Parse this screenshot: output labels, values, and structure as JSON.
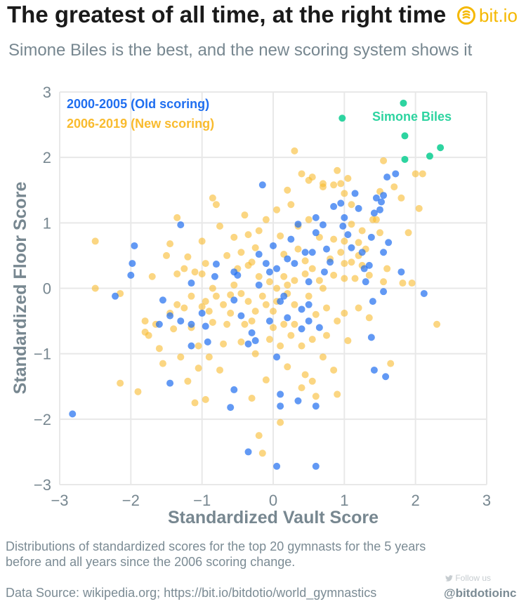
{
  "header": {
    "title": "The greatest of all time, at the right time",
    "subtitle": "Simone Biles is the best, and the new scoring system shows it",
    "logo_text": "bit.io"
  },
  "footer": {
    "caption": "Distributions of standardized scores for the top 20 gymnasts for the 5 years before and all years since the 2006 scoring change.",
    "source": "Data Source: wikipedia.org; https://bit.io/bitdotio/world_gymnastics",
    "follow": "Follow us",
    "handle": "@bitdotioinc"
  },
  "colors": {
    "old": "#1f6ef0",
    "new": "#f9bb2e",
    "biles": "#2dd4a0",
    "brand": "#f5b800"
  },
  "chart_data": {
    "type": "scatter",
    "xlabel": "Standardized Vault Score",
    "ylabel": "Standardized Floor Score",
    "xlim": [
      -3,
      3
    ],
    "ylim": [
      -3,
      3
    ],
    "xticks": [
      "−3",
      "−2",
      "−1",
      "0",
      "1",
      "2",
      "3"
    ],
    "yticks": [
      "3",
      "2",
      "1",
      "0",
      "−1",
      "−2",
      "−3"
    ],
    "grid": true,
    "legend_position": "top-left",
    "annotation": "Simone Biles",
    "series": [
      {
        "name": "2000-2005 (Old scoring)",
        "color": "#1f6ef0",
        "points": [
          [
            -2.82,
            -1.92
          ],
          [
            -2.22,
            -0.12
          ],
          [
            -1.95,
            0.65
          ],
          [
            -1.98,
            0.38
          ],
          [
            -2.0,
            0.2
          ],
          [
            -1.6,
            -0.55
          ],
          [
            -1.55,
            -0.18
          ],
          [
            -1.45,
            -0.42
          ],
          [
            -1.3,
            0.97
          ],
          [
            -1.3,
            -0.5
          ],
          [
            -1.15,
            -0.55
          ],
          [
            -1.15,
            -0.88
          ],
          [
            -1.15,
            0.08
          ],
          [
            -1.0,
            -0.38
          ],
          [
            -0.95,
            -0.58
          ],
          [
            -0.92,
            -0.82
          ],
          [
            -0.82,
            0.18
          ],
          [
            -0.8,
            0.37
          ],
          [
            -0.55,
            -0.18
          ],
          [
            -0.5,
            0.2
          ],
          [
            -0.55,
            0.25
          ],
          [
            -0.45,
            -0.42
          ],
          [
            -0.35,
            -0.85
          ],
          [
            -0.25,
            -0.8
          ],
          [
            -0.2,
            0.05
          ],
          [
            -0.2,
            0.52
          ],
          [
            -0.1,
            0.38
          ],
          [
            -0.05,
            0.25
          ],
          [
            -0.05,
            -0.5
          ],
          [
            -0.15,
            1.58
          ],
          [
            -0.3,
            -0.68
          ],
          [
            0.0,
            0.65
          ],
          [
            0.05,
            0.3
          ],
          [
            0.1,
            -0.2
          ],
          [
            0.05,
            -1.05
          ],
          [
            0.1,
            -1.62
          ],
          [
            0.1,
            -1.8
          ],
          [
            0.15,
            -0.12
          ],
          [
            0.2,
            0.45
          ],
          [
            0.3,
            0.38
          ],
          [
            0.35,
            0.98
          ],
          [
            0.4,
            -0.32
          ],
          [
            0.45,
            0.55
          ],
          [
            0.4,
            -0.62
          ],
          [
            0.5,
            -0.25
          ],
          [
            0.55,
            0.55
          ],
          [
            0.6,
            0.85
          ],
          [
            0.65,
            -0.6
          ],
          [
            0.6,
            1.08
          ],
          [
            0.7,
            0.97
          ],
          [
            0.75,
            0.6
          ],
          [
            0.8,
            0.4
          ],
          [
            0.85,
            1.25
          ],
          [
            0.95,
            1.3
          ],
          [
            0.98,
            0.95
          ],
          [
            1.0,
            1.08
          ],
          [
            1.05,
            0.82
          ],
          [
            1.1,
            0.62
          ],
          [
            1.15,
            1.45
          ],
          [
            1.2,
            1.22
          ],
          [
            1.25,
            0.55
          ],
          [
            1.28,
            0.3
          ],
          [
            1.3,
            0.1
          ],
          [
            1.35,
            0.35
          ],
          [
            1.38,
            0.78
          ],
          [
            1.42,
            1.15
          ],
          [
            1.45,
            1.38
          ],
          [
            1.5,
            1.2
          ],
          [
            1.52,
            1.32
          ],
          [
            1.55,
            1.42
          ],
          [
            1.55,
            0.55
          ],
          [
            1.6,
            1.7
          ],
          [
            1.62,
            0.7
          ],
          [
            1.4,
            -0.2
          ],
          [
            1.55,
            -0.05
          ],
          [
            1.38,
            -0.75
          ],
          [
            1.42,
            -1.25
          ],
          [
            1.58,
            -1.35
          ],
          [
            1.72,
            1.75
          ],
          [
            1.8,
            0.25
          ],
          [
            2.12,
            -0.08
          ],
          [
            0.35,
            -1.72
          ],
          [
            0.6,
            -1.8
          ],
          [
            0.05,
            -2.72
          ],
          [
            0.6,
            -2.72
          ],
          [
            -0.35,
            -2.5
          ],
          [
            -0.6,
            -1.82
          ],
          [
            -1.45,
            -1.45
          ],
          [
            -0.55,
            -1.55
          ],
          [
            0.5,
            -0.5
          ],
          [
            0.2,
            -0.45
          ],
          [
            0.5,
            0.1
          ],
          [
            0.72,
            0.25
          ],
          [
            0.25,
            0.75
          ]
        ]
      },
      {
        "name": "2006-2019 (New scoring)",
        "color": "#f9bb2e",
        "points": [
          [
            -2.5,
            0.72
          ],
          [
            -2.5,
            0.0
          ],
          [
            -2.15,
            -1.45
          ],
          [
            -2.15,
            -0.08
          ],
          [
            -1.9,
            -1.58
          ],
          [
            -1.8,
            -0.5
          ],
          [
            -1.8,
            -0.67
          ],
          [
            -1.75,
            -0.72
          ],
          [
            -1.7,
            0.18
          ],
          [
            -1.65,
            -0.55
          ],
          [
            -1.6,
            -0.92
          ],
          [
            -1.55,
            -1.15
          ],
          [
            -1.5,
            0.5
          ],
          [
            -1.45,
            0.68
          ],
          [
            -1.45,
            -0.38
          ],
          [
            -1.4,
            -0.62
          ],
          [
            -1.35,
            0.22
          ],
          [
            -1.35,
            1.08
          ],
          [
            -1.3,
            -1.05
          ],
          [
            -1.25,
            -0.3
          ],
          [
            -1.25,
            0.3
          ],
          [
            -1.2,
            -1.42
          ],
          [
            -1.15,
            -0.12
          ],
          [
            -1.15,
            -0.6
          ],
          [
            -1.1,
            0.25
          ],
          [
            -1.1,
            -1.75
          ],
          [
            -1.05,
            -0.88
          ],
          [
            -1.05,
            -1.22
          ],
          [
            -1.0,
            -0.28
          ],
          [
            -1.0,
            0.72
          ],
          [
            -0.95,
            0.38
          ],
          [
            -0.95,
            -1.7
          ],
          [
            -0.9,
            -0.35
          ],
          [
            -0.9,
            -1.05
          ],
          [
            -0.85,
            0.0
          ],
          [
            -0.85,
            -0.52
          ],
          [
            -0.8,
            -0.12
          ],
          [
            -0.75,
            -1.25
          ],
          [
            -0.7,
            -0.25
          ],
          [
            -0.65,
            -0.55
          ],
          [
            -0.6,
            -0.1
          ],
          [
            -0.55,
            0.05
          ],
          [
            -0.5,
            0.3
          ],
          [
            -0.45,
            0.55
          ],
          [
            -0.45,
            -0.08
          ],
          [
            -0.4,
            -0.55
          ],
          [
            -0.35,
            0.82
          ],
          [
            -0.35,
            -0.2
          ],
          [
            -0.3,
            0.4
          ],
          [
            -0.25,
            0.62
          ],
          [
            -0.25,
            -0.35
          ],
          [
            -0.2,
            0.18
          ],
          [
            -0.15,
            -0.12
          ],
          [
            -0.1,
            -0.25
          ],
          [
            -0.05,
            0.1
          ],
          [
            0.0,
            -0.35
          ],
          [
            0.0,
            -0.6
          ],
          [
            0.05,
            0.0
          ],
          [
            0.1,
            -0.88
          ],
          [
            0.1,
            0.8
          ],
          [
            0.15,
            0.52
          ],
          [
            0.2,
            -0.08
          ],
          [
            0.25,
            1.28
          ],
          [
            0.3,
            0.12
          ],
          [
            0.3,
            -0.55
          ],
          [
            0.35,
            0.6
          ],
          [
            0.4,
            -0.88
          ],
          [
            0.45,
            0.22
          ],
          [
            0.45,
            -1.32
          ],
          [
            0.5,
            1.05
          ],
          [
            0.5,
            -0.12
          ],
          [
            0.55,
            0.3
          ],
          [
            0.55,
            -1.42
          ],
          [
            0.6,
            -0.4
          ],
          [
            0.65,
            0.78
          ],
          [
            0.7,
            0.0
          ],
          [
            0.75,
            -0.72
          ],
          [
            0.8,
            0.45
          ],
          [
            0.85,
            -1.25
          ],
          [
            0.85,
            0.2
          ],
          [
            0.9,
            -0.5
          ],
          [
            0.95,
            0.55
          ],
          [
            1.0,
            0.38
          ],
          [
            1.0,
            -0.38
          ],
          [
            1.05,
            -0.8
          ],
          [
            1.1,
            0.98
          ],
          [
            1.1,
            1.28
          ],
          [
            1.15,
            0.15
          ],
          [
            1.2,
            0.5
          ],
          [
            1.2,
            -0.3
          ],
          [
            1.25,
            0.88
          ],
          [
            1.3,
            0.6
          ],
          [
            1.35,
            -0.45
          ],
          [
            1.4,
            1.05
          ],
          [
            1.45,
            1.05
          ],
          [
            1.5,
            1.48
          ],
          [
            1.5,
            0.85
          ],
          [
            1.55,
            1.95
          ],
          [
            1.6,
            0.3
          ],
          [
            1.65,
            -1.15
          ],
          [
            1.7,
            1.55
          ],
          [
            1.8,
            1.38
          ],
          [
            1.82,
            0.08
          ],
          [
            1.9,
            0.85
          ],
          [
            1.95,
            0.08
          ],
          [
            2.0,
            1.75
          ],
          [
            2.05,
            1.22
          ],
          [
            2.1,
            1.75
          ],
          [
            2.3,
            -0.55
          ],
          [
            -0.2,
            -2.25
          ],
          [
            -0.15,
            -2.52
          ],
          [
            -0.3,
            -1.68
          ],
          [
            0.1,
            -2.05
          ],
          [
            0.4,
            -1.52
          ],
          [
            0.6,
            -1.65
          ],
          [
            0.9,
            -1.62
          ],
          [
            -0.1,
            -1.4
          ],
          [
            0.2,
            -1.2
          ],
          [
            0.7,
            -1.05
          ],
          [
            -0.05,
            -0.78
          ],
          [
            0.3,
            -0.25
          ],
          [
            0.35,
            0.95
          ],
          [
            0.4,
            1.75
          ],
          [
            0.55,
            1.7
          ],
          [
            0.7,
            1.6
          ],
          [
            0.85,
            1.58
          ],
          [
            0.9,
            1.8
          ],
          [
            1.0,
            1.45
          ],
          [
            0.95,
            1.6
          ],
          [
            1.05,
            1.68
          ],
          [
            0.7,
            1.55
          ],
          [
            0.5,
            1.65
          ],
          [
            0.3,
            2.1
          ],
          [
            0.2,
            1.5
          ],
          [
            0.05,
            1.2
          ],
          [
            -0.1,
            1.05
          ],
          [
            -0.2,
            0.88
          ],
          [
            -0.4,
            1.12
          ],
          [
            -0.55,
            0.78
          ],
          [
            -0.75,
            0.95
          ],
          [
            -0.8,
            1.28
          ],
          [
            -0.85,
            1.38
          ],
          [
            -1.0,
            0.22
          ],
          [
            -1.2,
            0.48
          ],
          [
            -0.95,
            -0.2
          ],
          [
            -0.6,
            -0.38
          ],
          [
            -0.3,
            -0.5
          ],
          [
            0.05,
            -0.2
          ],
          [
            0.25,
            -0.72
          ],
          [
            0.55,
            -0.78
          ],
          [
            0.75,
            -0.3
          ],
          [
            1.0,
            0.15
          ],
          [
            1.25,
            0.35
          ],
          [
            1.35,
            0.2
          ],
          [
            1.55,
            0.1
          ],
          [
            -0.65,
            0.5
          ],
          [
            -0.35,
            0.35
          ],
          [
            0.15,
            0.18
          ],
          [
            0.45,
            0.42
          ],
          [
            0.65,
            0.12
          ],
          [
            0.85,
            0.75
          ],
          [
            1.0,
            0.72
          ],
          [
            1.1,
            0.4
          ],
          [
            1.2,
            0.7
          ],
          [
            0.2,
            0.05
          ],
          [
            -0.45,
            -0.82
          ],
          [
            -0.25,
            -1.0
          ],
          [
            0.15,
            -0.55
          ],
          [
            -0.7,
            -0.85
          ],
          [
            -1.35,
            -0.25
          ]
        ]
      },
      {
        "name": "Simone Biles",
        "color": "#2dd4a0",
        "points": [
          [
            0.97,
            2.6
          ],
          [
            1.83,
            2.83
          ],
          [
            1.85,
            2.33
          ],
          [
            1.85,
            1.97
          ],
          [
            2.2,
            2.02
          ],
          [
            2.35,
            2.15
          ]
        ]
      }
    ]
  }
}
